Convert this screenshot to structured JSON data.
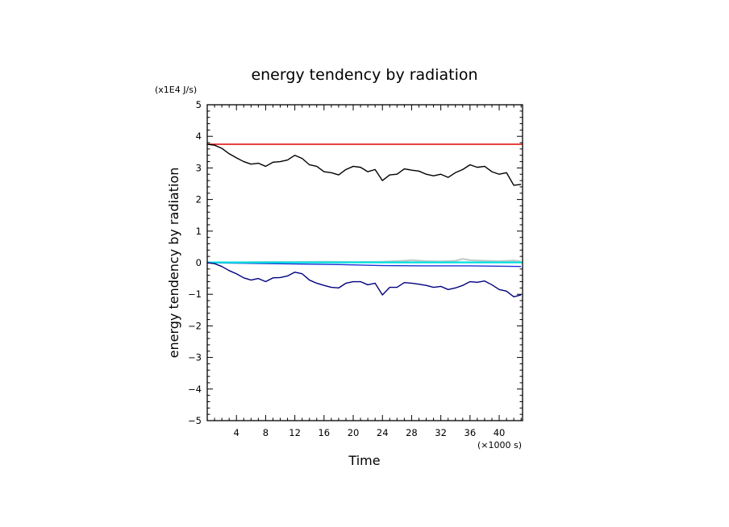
{
  "chart_data": {
    "type": "line",
    "title": "energy tendency by radiation",
    "xlabel": "Time",
    "ylabel": "energy tendency by radiation",
    "x_unit": "(×1000 s)",
    "y_unit": "(x1E4 J/s)",
    "xlim": [
      0,
      43.2
    ],
    "ylim": [
      -5,
      5
    ],
    "x_ticks": [
      4,
      8,
      12,
      16,
      20,
      24,
      28,
      32,
      36,
      40
    ],
    "x_tick_labels": [
      "4",
      "8",
      "12",
      "16",
      "20",
      "24",
      "28",
      "32",
      "36",
      "40"
    ],
    "y_ticks": [
      5,
      4,
      3,
      2,
      1,
      0,
      -1,
      -2,
      -3,
      -4,
      -5
    ],
    "y_tick_labels": [
      "5",
      "4",
      "3",
      "2",
      "1",
      "0",
      "−1",
      "−2",
      "−3",
      "−4",
      "−5"
    ],
    "grid": false,
    "series": [
      {
        "color": "#e00000",
        "x": [
          0,
          43.2
        ],
        "y": [
          3.75,
          3.75
        ]
      },
      {
        "color": "#000000",
        "x": [
          0,
          1,
          2,
          3,
          4,
          5,
          6,
          7,
          8,
          9,
          10,
          11,
          12,
          13,
          14,
          15,
          16,
          17,
          18,
          19,
          20,
          21,
          22,
          23,
          24,
          25,
          26,
          27,
          28,
          29,
          30,
          31,
          32,
          33,
          34,
          35,
          36,
          37,
          38,
          39,
          40,
          41,
          42,
          43
        ],
        "y": [
          3.75,
          3.72,
          3.62,
          3.45,
          3.32,
          3.2,
          3.12,
          3.15,
          3.05,
          3.18,
          3.2,
          3.25,
          3.4,
          3.3,
          3.1,
          3.05,
          2.88,
          2.85,
          2.78,
          2.95,
          3.05,
          3.02,
          2.88,
          2.95,
          2.6,
          2.78,
          2.8,
          2.97,
          2.93,
          2.9,
          2.8,
          2.75,
          2.8,
          2.7,
          2.85,
          2.95,
          3.1,
          3.02,
          3.05,
          2.88,
          2.8,
          2.85,
          2.45,
          2.48
        ]
      },
      {
        "color": "#c8c8c8",
        "x": [
          0,
          4,
          8,
          12,
          16,
          20,
          24,
          27,
          28,
          30,
          32,
          34,
          35,
          36,
          38,
          40,
          42,
          43
        ],
        "y": [
          0,
          0.01,
          0.02,
          0.02,
          0.03,
          0.02,
          0.03,
          0.06,
          0.08,
          0.05,
          0.04,
          0.06,
          0.12,
          0.08,
          0.06,
          0.05,
          0.07,
          0.04
        ]
      },
      {
        "color": "#1a2fd6",
        "x": [
          0,
          6,
          12,
          18,
          24,
          30,
          36,
          43
        ],
        "y": [
          0,
          -0.02,
          -0.04,
          -0.06,
          -0.09,
          -0.1,
          -0.1,
          -0.12
        ]
      },
      {
        "color": "#00e0e0",
        "x": [
          0,
          43.2
        ],
        "y": [
          0.01,
          0.01
        ]
      },
      {
        "color": "#000080",
        "x": [
          0,
          1,
          2,
          3,
          4,
          5,
          6,
          7,
          8,
          9,
          10,
          11,
          12,
          13,
          14,
          15,
          16,
          17,
          18,
          19,
          20,
          21,
          22,
          23,
          24,
          25,
          26,
          27,
          28,
          29,
          30,
          31,
          32,
          33,
          34,
          35,
          36,
          37,
          38,
          39,
          40,
          41,
          42,
          43
        ],
        "y": [
          0,
          -0.03,
          -0.12,
          -0.25,
          -0.35,
          -0.48,
          -0.55,
          -0.5,
          -0.6,
          -0.48,
          -0.47,
          -0.42,
          -0.3,
          -0.35,
          -0.55,
          -0.65,
          -0.72,
          -0.78,
          -0.8,
          -0.65,
          -0.6,
          -0.6,
          -0.7,
          -0.65,
          -1.02,
          -0.78,
          -0.78,
          -0.63,
          -0.65,
          -0.68,
          -0.72,
          -0.78,
          -0.75,
          -0.85,
          -0.8,
          -0.72,
          -0.6,
          -0.62,
          -0.58,
          -0.7,
          -0.85,
          -0.9,
          -1.08,
          -1.02
        ]
      }
    ]
  }
}
